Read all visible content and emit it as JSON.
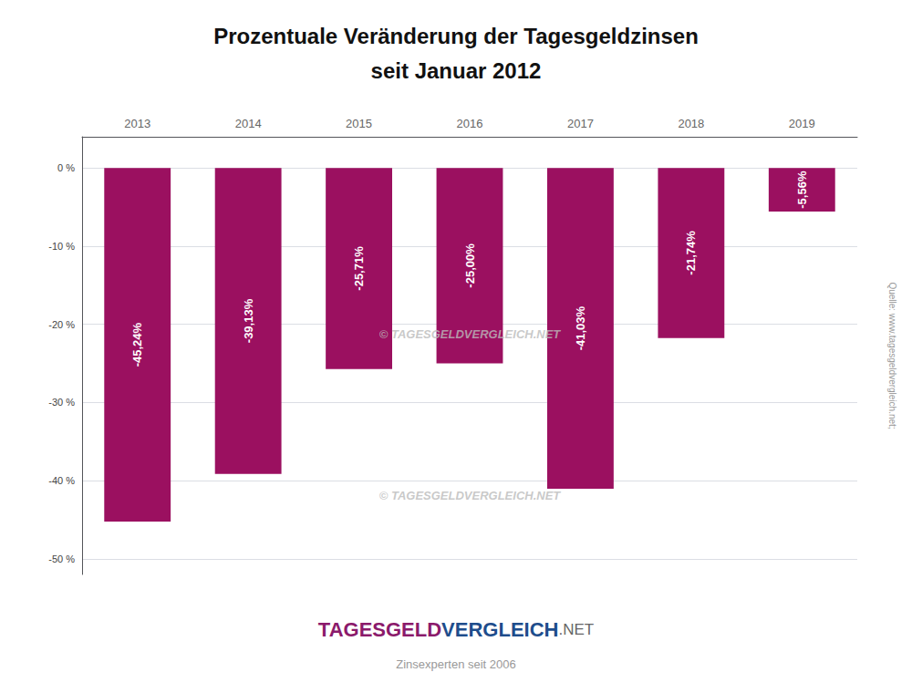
{
  "chart_data": {
    "type": "bar",
    "title": "Prozentuale Veränderung der Tagesgeldzinsen",
    "subtitle": "seit Januar 2012",
    "categories": [
      "2013",
      "2014",
      "2015",
      "2016",
      "2017",
      "2018",
      "2019"
    ],
    "values": [
      -45.24,
      -39.13,
      -25.71,
      -25.0,
      -41.03,
      -21.74,
      -5.56
    ],
    "value_labels": [
      "-45,24%",
      "-39,13%",
      "-25,71%",
      "-25,00%",
      "-41,03%",
      "-21,74%",
      "-5,56%"
    ],
    "data_labels": true,
    "color": "#9b1060",
    "ylim": [
      -52,
      4
    ],
    "yticks": [
      {
        "value": 0,
        "label": "0 %"
      },
      {
        "value": -10,
        "label": "-10 %"
      },
      {
        "value": -20,
        "label": "-20 %"
      },
      {
        "value": -30,
        "label": "-30 %"
      },
      {
        "value": -40,
        "label": "-40 %"
      },
      {
        "value": -50,
        "label": "-50 %"
      }
    ],
    "grid": true,
    "annotations": [
      "© TAGESGELDVERGLEICH.NET",
      "© TAGESGELDVERGLEICH.NET",
      "Quelle: www.tagesgeldvergleich.net;",
      "TAGESGELD",
      "VERGLEICH",
      ".NET",
      "Zinsexperten seit 2006"
    ]
  }
}
